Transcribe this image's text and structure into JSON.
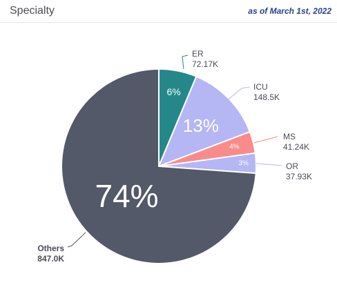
{
  "header": {
    "title": "Specialty",
    "as_of": "as of March 1st, 2022"
  },
  "chart_data": {
    "type": "pie",
    "slices": [
      {
        "name": "ER",
        "value": 72.17,
        "value_label": "72.17K",
        "pct_label": "6%",
        "color": "#24888a"
      },
      {
        "name": "ICU",
        "value": 148.5,
        "value_label": "148.5K",
        "pct_label": "13%",
        "color": "#b5b6f4"
      },
      {
        "name": "MS",
        "value": 41.24,
        "value_label": "41.24K",
        "pct_label": "4%",
        "color": "#f98b8b"
      },
      {
        "name": "OR",
        "value": 37.93,
        "value_label": "37.93K",
        "pct_label": "3%",
        "color": "#b5b6f4"
      },
      {
        "name": "Others",
        "value": 847.0,
        "value_label": "847.0K",
        "pct_label": "74%",
        "color": "#535968"
      }
    ]
  }
}
